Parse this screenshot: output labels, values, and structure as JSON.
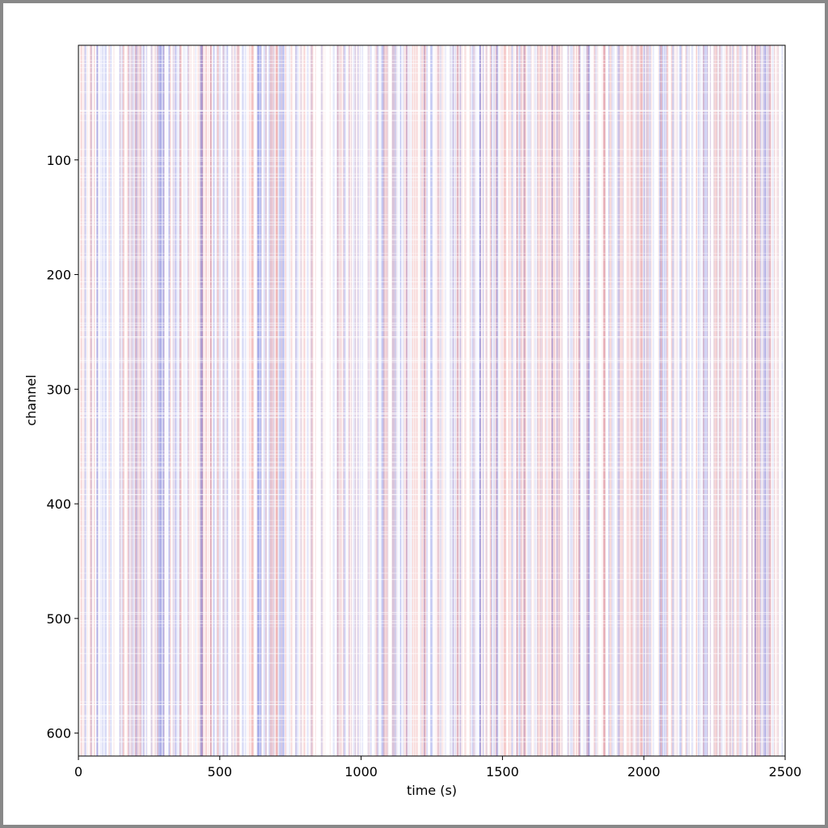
{
  "chart_data": {
    "type": "heatmap",
    "x_label": "time (s)",
    "y_label": "channel",
    "xlim": [
      0,
      2500
    ],
    "xticks": [
      0,
      500,
      1000,
      1500,
      2000,
      2500
    ],
    "ylim": [
      620,
      0
    ],
    "yticks": [
      100,
      200,
      300,
      400,
      500,
      600
    ]
  }
}
